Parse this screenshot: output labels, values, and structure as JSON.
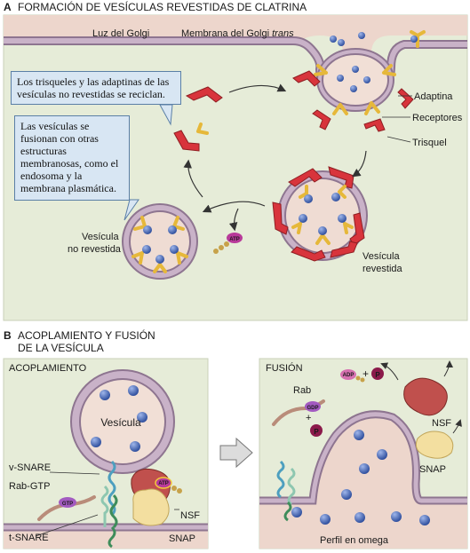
{
  "panel_a": {
    "letter": "A",
    "title": "FORMACIÓN DE VESÍCULAS REVESTIDAS DE CLATRINA",
    "luz_golgi": "Luz del Golgi",
    "membrana_main": "Membrana del Golgi ",
    "membrana_trans": "trans",
    "adaptina": "Adaptina",
    "receptores": "Receptores",
    "trisquel": "Trisquel",
    "callout_recycle": "Los trisqueles y las adaptinas de las vesículas no revestidas se reciclan.",
    "callout_fuse": "Las vesículas se fusionan con otras estructuras membranosas, como el endosoma y la membrana plasmática.",
    "vesicula_no_revestida_1": "Vesícula",
    "vesicula_no_revestida_2": "no revestida",
    "vesicula_revestida_1": "Vesícula",
    "vesicula_revestida_2": "revestida",
    "atp": "ATP"
  },
  "panel_b": {
    "letter": "B",
    "title_line1": "ACOPLAMIENTO Y FUSIÓN",
    "title_line2": "DE LA VESÍCULA",
    "acoplamiento": "ACOPLAMIENTO",
    "vesicula": "Vesícula",
    "v_snare": "v-SNARE",
    "rab_gtp": "Rab-GTP",
    "gtp": "GTP",
    "t_snare": "t-SNARE",
    "atp": "ATP",
    "nsf": "NSF",
    "snap": "SNAP",
    "fusion": "FUSIÓN",
    "adp": "ADP",
    "plus": "+",
    "p": "P",
    "rab": "Rab",
    "gdp": "GDP",
    "nsf2": "NSF",
    "snap2": "SNAP",
    "perfil": "Perfil en omega"
  },
  "colors": {
    "panel_bg": "#e6ecd8",
    "lumen": "#edd6cc",
    "membrane": "#b9a3b9",
    "membrane_edge": "#8e7590",
    "vesicle_dot": "#4a6fbd",
    "adaptin": "#f1cf55",
    "triskelion": "#d8343c",
    "callout_bg": "#d8e6f3",
    "nsf": "#c0504d",
    "snap": "#f3dfa0"
  }
}
